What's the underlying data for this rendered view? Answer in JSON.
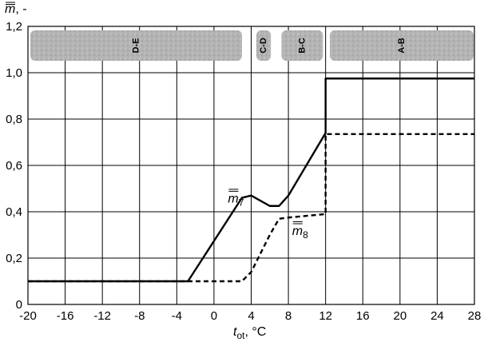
{
  "chart_data": {
    "type": "line",
    "title": "",
    "xlabel": {
      "main": "t",
      "sub": "ot",
      "unit": ", °C"
    },
    "ylabel": {
      "main": "m",
      "unit": ", -"
    },
    "xlim": [
      -20,
      28
    ],
    "ylim": [
      0,
      1.2
    ],
    "xticks": [
      -20,
      -16,
      -12,
      -8,
      -4,
      0,
      4,
      8,
      12,
      16,
      20,
      24,
      28
    ],
    "yticks": [
      0,
      0.2,
      0.4,
      0.6,
      0.8,
      1.0,
      1.2
    ],
    "xtick_labels": [
      "-20",
      "-16",
      "-12",
      "-8",
      "-4",
      "0",
      "4",
      "8",
      "12",
      "16",
      "20",
      "24",
      "28"
    ],
    "ytick_labels": [
      "0",
      "0,2",
      "0,4",
      "0,6",
      "0,8",
      "1,0",
      "1,2"
    ],
    "grid": true,
    "regions": [
      {
        "label": "D-E",
        "x_start": -20,
        "x_end": 3.1
      },
      {
        "label": "C-D",
        "x_start": 4.3,
        "x_end": 6.2
      },
      {
        "label": "B-C",
        "x_start": 7.0,
        "x_end": 11.8
      },
      {
        "label": "A-B",
        "x_start": 12.2,
        "x_end": 28
      }
    ],
    "series": [
      {
        "name": "m7",
        "style": "solid",
        "points": [
          [
            -20,
            0.1
          ],
          [
            -2.8,
            0.1
          ],
          [
            3.0,
            0.46
          ],
          [
            4.0,
            0.47
          ],
          [
            6.0,
            0.425
          ],
          [
            7.0,
            0.425
          ],
          [
            8.0,
            0.47
          ],
          [
            12.0,
            0.74
          ],
          [
            12.0,
            0.975
          ],
          [
            28.0,
            0.975
          ]
        ]
      },
      {
        "name": "m8",
        "style": "dashed",
        "points": [
          [
            -20,
            0.1
          ],
          [
            3.0,
            0.1
          ],
          [
            4.0,
            0.14
          ],
          [
            6.0,
            0.3
          ],
          [
            7.0,
            0.37
          ],
          [
            8.0,
            0.375
          ],
          [
            12.0,
            0.39
          ],
          [
            12.0,
            0.735
          ],
          [
            28.0,
            0.735
          ]
        ]
      }
    ],
    "annotations": [
      {
        "series": "m7",
        "main": "m",
        "sub": "7",
        "x": 1.5,
        "y": 0.44
      },
      {
        "series": "m8",
        "main": "m",
        "sub": "8",
        "x": 8.4,
        "y": 0.3
      }
    ]
  }
}
